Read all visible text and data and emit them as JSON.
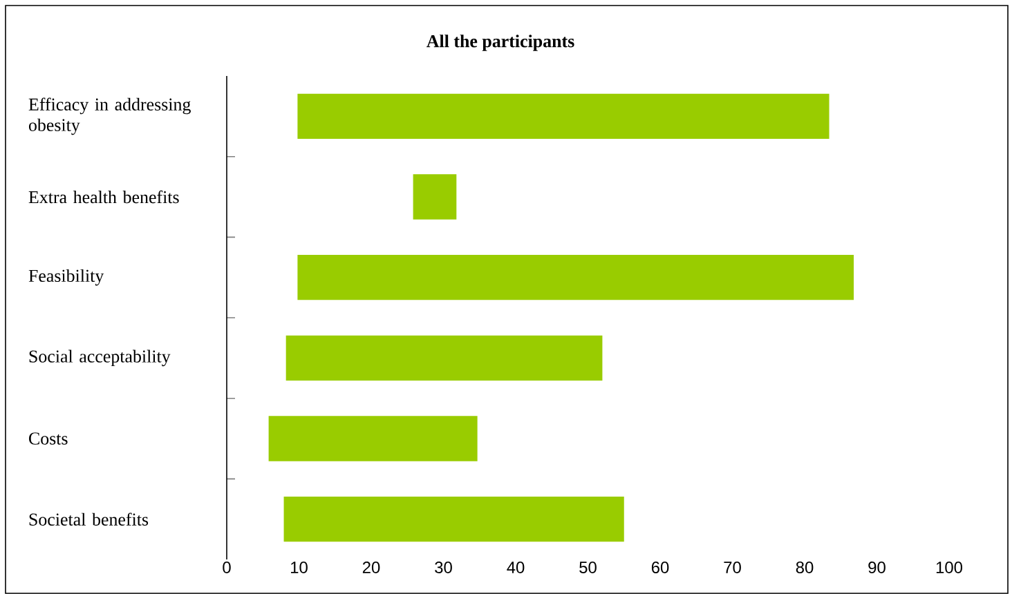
{
  "chart_data": {
    "type": "bar",
    "orientation": "horizontal",
    "title": "All the participants",
    "categories": [
      "Efficacy in addressing obesity",
      "Extra health benefits",
      "Feasibility",
      "Social acceptability",
      "Costs",
      "Societal benefits"
    ],
    "base": [
      9.8,
      25.8,
      9.8,
      8.2,
      5.8,
      7.9
    ],
    "values": [
      73.6,
      6.0,
      77.0,
      43.8,
      28.9,
      47.1
    ],
    "color": "#99cc00",
    "xlim": [
      0,
      100
    ],
    "xticks": [
      0,
      10,
      20,
      30,
      40,
      50,
      60,
      70,
      80,
      90,
      100
    ]
  }
}
